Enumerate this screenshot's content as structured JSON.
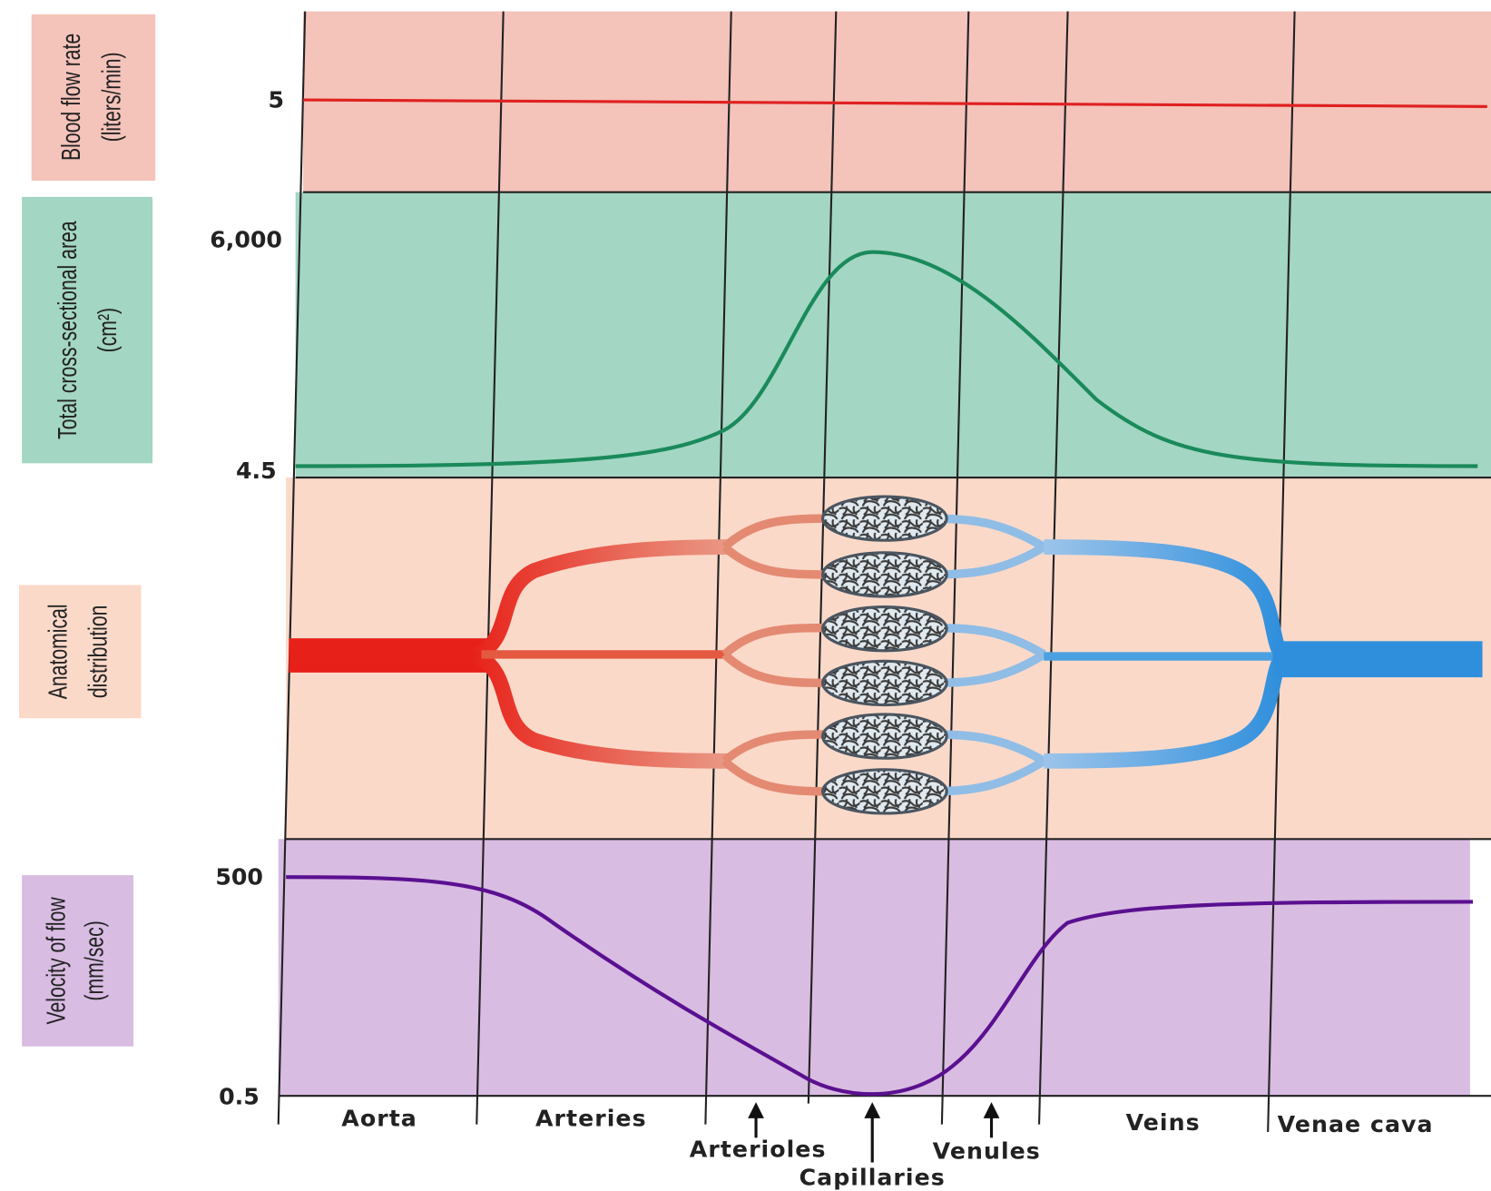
{
  "panels": [
    {
      "label": "Blood flow rate",
      "unit": "(liters/min)"
    },
    {
      "label": "Total cross-sectional area",
      "unit": "(cm²)"
    },
    {
      "label": "Anatomical",
      "unit": "distribution"
    },
    {
      "label": "Velocity of flow",
      "unit": "(mm/sec)"
    }
  ],
  "ticks": [
    "5",
    "6,000",
    "4.5",
    "500",
    "0.5"
  ],
  "vessels": [
    "Aorta",
    "Arteries",
    "Arterioles",
    "Capillaries",
    "Venules",
    "Veins",
    "Venae cava"
  ]
}
